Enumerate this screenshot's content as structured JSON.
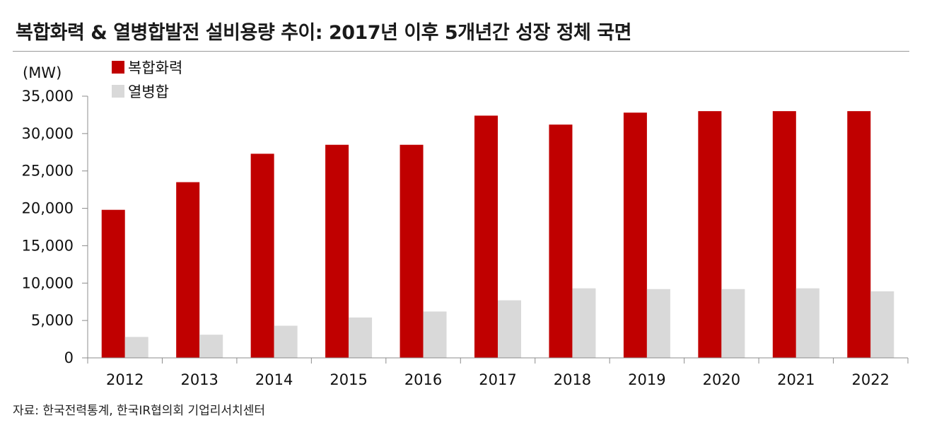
{
  "title": "복합화력 & 열병합발전 설비용량 추이: 2017년 이후 5개년간 성장 정체 국면",
  "source": "자료: 한국전력통계, 한국IR협의회 기업리서치센터",
  "colors": {
    "series1": "#c00000",
    "series2": "#d9d9d9",
    "axis": "#8c8c8c"
  },
  "chart_data": {
    "type": "bar",
    "unit_label": "(MW)",
    "categories": [
      "2012",
      "2013",
      "2014",
      "2015",
      "2016",
      "2017",
      "2018",
      "2019",
      "2020",
      "2021",
      "2022"
    ],
    "series": [
      {
        "name": "복합화력",
        "values": [
          19800,
          23500,
          27300,
          28500,
          28500,
          32400,
          31200,
          32800,
          33000,
          33000,
          33000
        ]
      },
      {
        "name": "열병합",
        "values": [
          2800,
          3100,
          4300,
          5400,
          6200,
          7700,
          9300,
          9200,
          9200,
          9300,
          8900
        ]
      }
    ],
    "ylim": [
      0,
      35000
    ],
    "yticks": [
      0,
      5000,
      10000,
      15000,
      20000,
      25000,
      30000,
      35000
    ],
    "ytick_labels": [
      "0",
      "5,000",
      "10,000",
      "15,000",
      "20,000",
      "25,000",
      "30,000",
      "35,000"
    ],
    "legend_position": "top-left",
    "grid": false
  }
}
